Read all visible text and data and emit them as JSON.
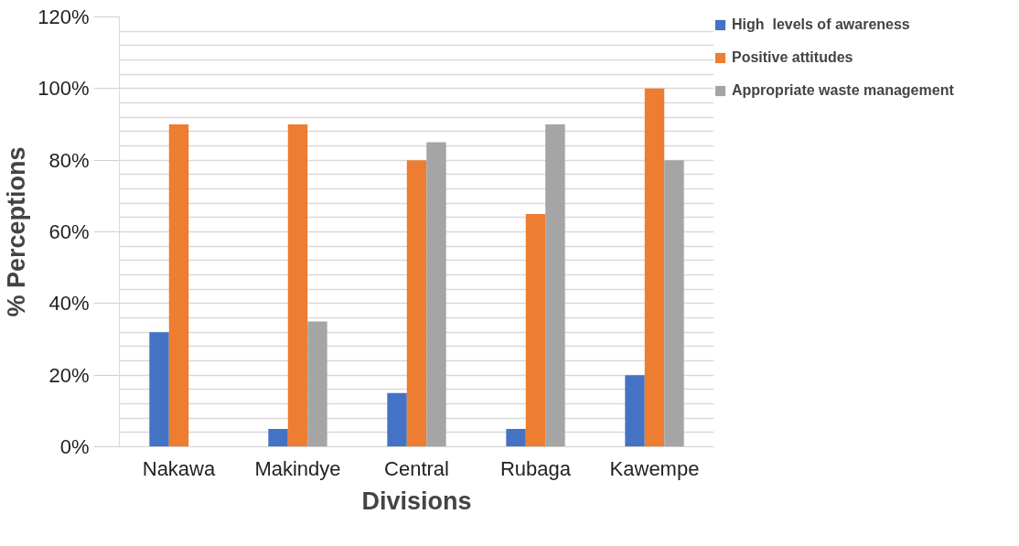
{
  "chart_data": {
    "type": "bar",
    "xlabel": "Divisions",
    "ylabel": "% Perceptions",
    "categories": [
      "Nakawa",
      "Makindye",
      "Central",
      "Rubaga",
      "Kawempe"
    ],
    "series": [
      {
        "name": "High  levels of awareness",
        "color": "#4472c4",
        "values": [
          32,
          5,
          15,
          5,
          20
        ]
      },
      {
        "name": "Positive attitudes",
        "color": "#ed7d31",
        "values": [
          90,
          90,
          80,
          65,
          100
        ]
      },
      {
        "name": "Appropriate waste management",
        "color": "#a5a5a5",
        "values": [
          null,
          35,
          85,
          90,
          80
        ]
      }
    ],
    "ylim": [
      0,
      120
    ],
    "yticks": [
      {
        "value": 0,
        "label": "0%"
      },
      {
        "value": 4,
        "label": null
      },
      {
        "value": 8,
        "label": null
      },
      {
        "value": 12,
        "label": null
      },
      {
        "value": 16,
        "label": null
      },
      {
        "value": 20,
        "label": "20%"
      },
      {
        "value": 24,
        "label": null
      },
      {
        "value": 28,
        "label": null
      },
      {
        "value": 32,
        "label": null
      },
      {
        "value": 36,
        "label": null
      },
      {
        "value": 40,
        "label": "40%"
      },
      {
        "value": 44,
        "label": null
      },
      {
        "value": 48,
        "label": null
      },
      {
        "value": 52,
        "label": null
      },
      {
        "value": 56,
        "label": null
      },
      {
        "value": 60,
        "label": "60%"
      },
      {
        "value": 64,
        "label": null
      },
      {
        "value": 68,
        "label": null
      },
      {
        "value": 72,
        "label": null
      },
      {
        "value": 76,
        "label": null
      },
      {
        "value": 80,
        "label": "80%"
      },
      {
        "value": 84,
        "label": null
      },
      {
        "value": 88,
        "label": null
      },
      {
        "value": 92,
        "label": null
      },
      {
        "value": 96,
        "label": null
      },
      {
        "value": 100,
        "label": "100%"
      },
      {
        "value": 104,
        "label": null
      },
      {
        "value": 108,
        "label": null
      },
      {
        "value": 112,
        "label": null
      },
      {
        "value": 116,
        "label": null
      },
      {
        "value": 120,
        "label": "120%"
      }
    ],
    "grid": "y",
    "legend": "top right"
  }
}
